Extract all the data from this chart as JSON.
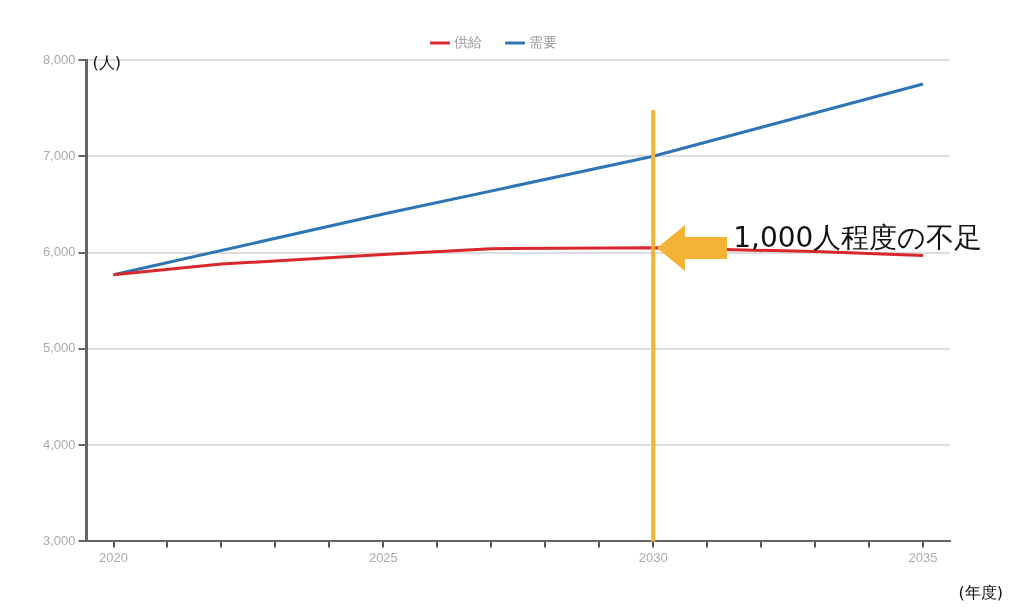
{
  "chart_data": {
    "type": "line",
    "ylabel": "(人)",
    "xlabel": "(年度)",
    "x": [
      2020,
      2022,
      2025,
      2027,
      2030,
      2033,
      2035
    ],
    "series": [
      {
        "name": "供給",
        "color": "#d9272e",
        "values": [
          5770,
          5880,
          5980,
          6040,
          6050,
          6010,
          5970
        ]
      },
      {
        "name": "需要",
        "color": "#2e75b6",
        "x": [
          2020,
          2025,
          2030,
          2035
        ],
        "values": [
          5770,
          6400,
          7000,
          7750
        ]
      }
    ],
    "xlim": [
      2019.5,
      2035.5
    ],
    "xticks": [
      2020,
      {
        "value": 2021,
        "label": null
      },
      {
        "value": 2022,
        "label": null
      },
      {
        "value": 2023,
        "label": null
      },
      {
        "value": 2024,
        "label": null
      },
      2025,
      {
        "value": 2026,
        "label": null
      },
      {
        "value": 2027,
        "label": null
      },
      {
        "value": 2028,
        "label": null
      },
      {
        "value": 2029,
        "label": null
      },
      2030,
      {
        "value": 2031,
        "label": null
      },
      {
        "value": 2032,
        "label": null
      },
      {
        "value": 2033,
        "label": null
      },
      {
        "value": 2034,
        "label": null
      },
      2035
    ],
    "ylim": [
      3000,
      8000
    ],
    "yticks": [
      {
        "value": 3000,
        "label": "3,000"
      },
      {
        "value": 4000,
        "label": "4,000"
      },
      {
        "value": 5000,
        "label": "5,000"
      },
      {
        "value": 6000,
        "label": "6,000"
      },
      {
        "value": 7000,
        "label": "7,000"
      },
      {
        "value": 8000,
        "label": "8,000"
      }
    ],
    "grid": "y",
    "legend": "top",
    "marker": "none",
    "line_style": "solid",
    "ref_lines": [
      {
        "axis": "x",
        "value": 2030,
        "color": "#f5b335"
      }
    ],
    "annotations": [
      {
        "text": "1,000人程度の不足",
        "x": 2030,
        "y": 6050
      }
    ]
  }
}
